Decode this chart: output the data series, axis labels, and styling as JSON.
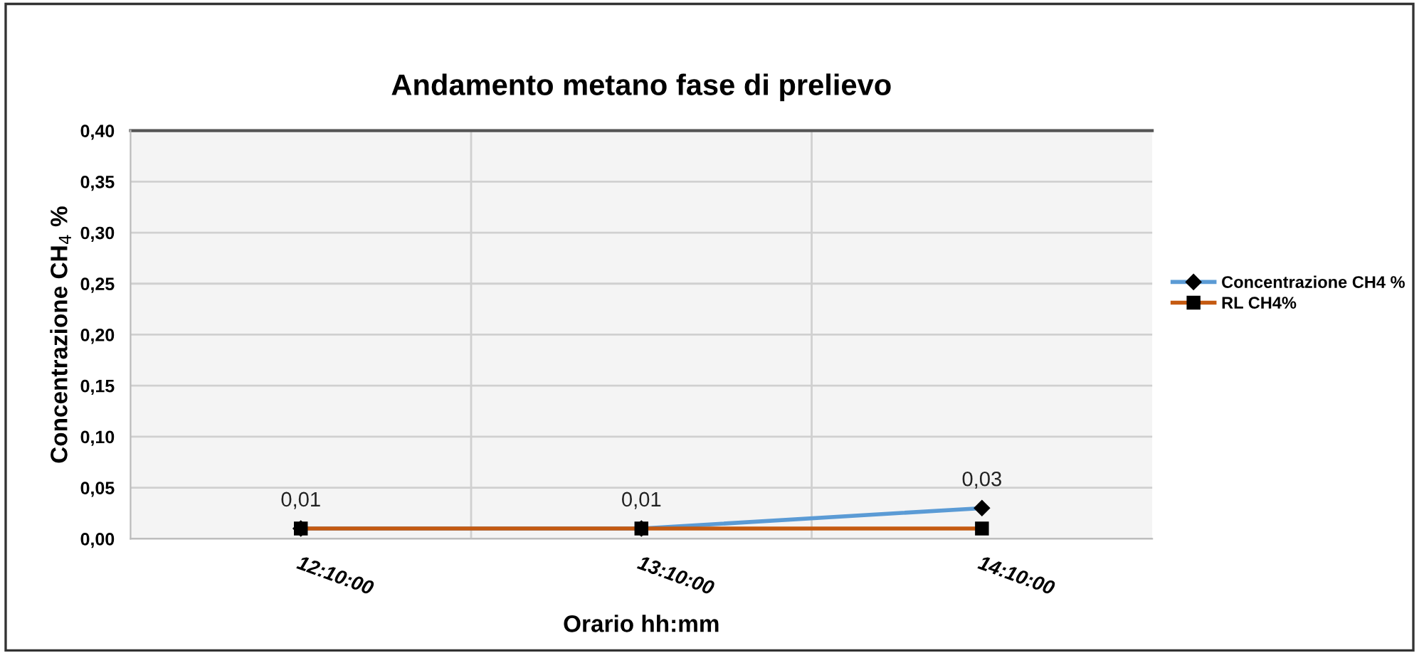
{
  "chart_data": {
    "type": "line",
    "title": "Andamento metano fase di prelievo",
    "xlabel": "Orario hh:mm",
    "ylabel": "Concentrazione CH$_{4}$ %",
    "categories": [
      "12:10:00",
      "13:10:00",
      "14:10:00"
    ],
    "series": [
      {
        "name": "Concentrazione CH4 %",
        "color": "#5b9bd5",
        "marker": "diamond",
        "values": [
          0.01,
          0.01,
          0.03
        ],
        "value_labels": [
          "0,01",
          "0,01",
          "0,03"
        ]
      },
      {
        "name": "RL CH4%",
        "color": "#c55a11",
        "marker": "square",
        "values": [
          0.01,
          0.01,
          0.01
        ]
      }
    ],
    "ylim": [
      0,
      0.4
    ],
    "yticks": [
      {
        "value": 0,
        "label": "0,00"
      },
      {
        "value": 0.05,
        "label": "0,05"
      },
      {
        "value": 0.1,
        "label": "0,10"
      },
      {
        "value": 0.15,
        "label": "0,15"
      },
      {
        "value": 0.2,
        "label": "0,20"
      },
      {
        "value": 0.25,
        "label": "0,25"
      },
      {
        "value": 0.3,
        "label": "0,30"
      },
      {
        "value": 0.35,
        "label": "0,35"
      },
      {
        "value": 0.4,
        "label": "0,40"
      }
    ],
    "grid": true,
    "legend": "right"
  }
}
